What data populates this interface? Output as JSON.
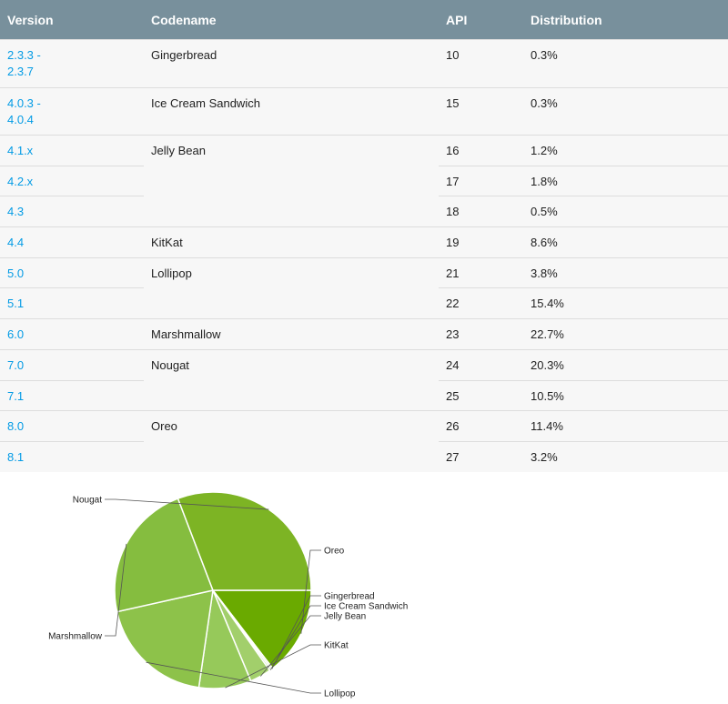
{
  "table": {
    "headers": [
      "Version",
      "Codename",
      "API",
      "Distribution"
    ],
    "rows": [
      {
        "version": "2.3.3 -\n2.3.7",
        "codename": "Gingerbread",
        "api": "10",
        "distribution": "0.3%",
        "group_start": true,
        "group_span": 1,
        "tall": true
      },
      {
        "version": "4.0.3 -\n4.0.4",
        "codename": "Ice Cream Sandwich",
        "api": "15",
        "distribution": "0.3%",
        "group_start": true,
        "group_span": 1,
        "tall": true
      },
      {
        "version": "4.1.x",
        "codename": "Jelly Bean",
        "api": "16",
        "distribution": "1.2%",
        "group_start": true,
        "group_span": 3
      },
      {
        "version": "4.2.x",
        "codename": "",
        "api": "17",
        "distribution": "1.8%",
        "group_start": false
      },
      {
        "version": "4.3",
        "codename": "",
        "api": "18",
        "distribution": "0.5%",
        "group_start": false
      },
      {
        "version": "4.4",
        "codename": "KitKat",
        "api": "19",
        "distribution": "8.6%",
        "group_start": true,
        "group_span": 1
      },
      {
        "version": "5.0",
        "codename": "Lollipop",
        "api": "21",
        "distribution": "3.8%",
        "group_start": true,
        "group_span": 2
      },
      {
        "version": "5.1",
        "codename": "",
        "api": "22",
        "distribution": "15.4%",
        "group_start": false
      },
      {
        "version": "6.0",
        "codename": "Marshmallow",
        "api": "23",
        "distribution": "22.7%",
        "group_start": true,
        "group_span": 1
      },
      {
        "version": "7.0",
        "codename": "Nougat",
        "api": "24",
        "distribution": "20.3%",
        "group_start": true,
        "group_span": 2
      },
      {
        "version": "7.1",
        "codename": "",
        "api": "25",
        "distribution": "10.5%",
        "group_start": false
      },
      {
        "version": "8.0",
        "codename": "Oreo",
        "api": "26",
        "distribution": "11.4%",
        "group_start": true,
        "group_span": 2
      },
      {
        "version": "8.1",
        "codename": "",
        "api": "27",
        "distribution": "3.2%",
        "group_start": false
      }
    ]
  },
  "chart_data": {
    "type": "pie",
    "title": "",
    "categories": [
      "Oreo",
      "Gingerbread",
      "Ice Cream Sandwich",
      "Jelly Bean",
      "KitKat",
      "Lollipop",
      "Marshmallow",
      "Nougat"
    ],
    "values": [
      14.6,
      0.3,
      0.3,
      3.5,
      8.6,
      19.2,
      22.7,
      30.8
    ],
    "colors": [
      "#6aaa00",
      "#c6e39f",
      "#b3d98a",
      "#a2cf6b",
      "#96c95a",
      "#8dc24a",
      "#85bd3f",
      "#7db424"
    ],
    "legend": "labels-around",
    "start_angle_deg": 0,
    "direction": "clockwise"
  }
}
